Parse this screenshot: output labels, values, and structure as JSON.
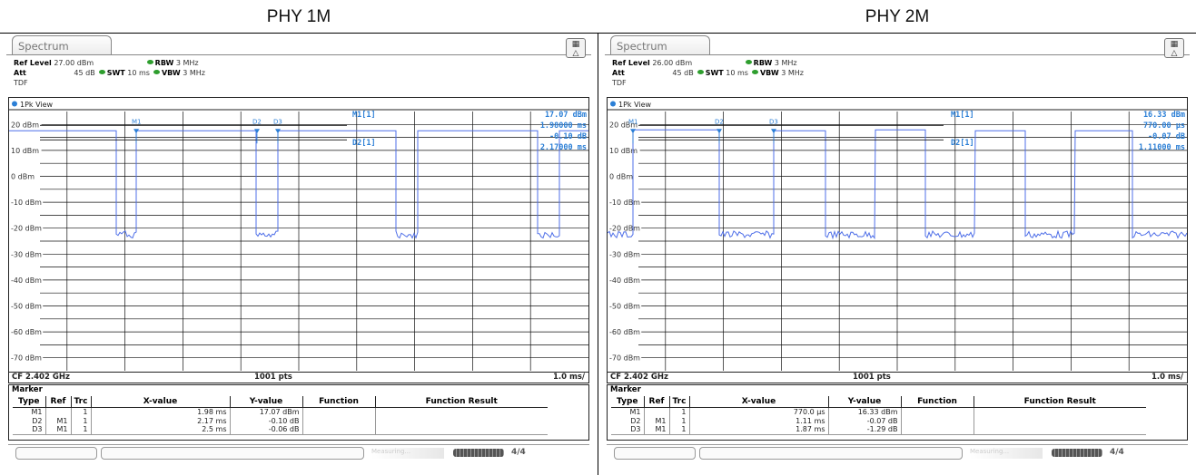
{
  "titles": {
    "left": "PHY 1M",
    "right": "PHY 2M"
  },
  "panels": [
    {
      "tab": "Spectrum",
      "settings": {
        "ref_level_label": "Ref Level",
        "ref_level": "27.00 dBm",
        "att_label": "Att",
        "att": "45 dB",
        "swt_label": "SWT",
        "swt": "10 ms",
        "rbw_label": "RBW",
        "rbw": "3 MHz",
        "vbw_label": "VBW",
        "vbw": "3 MHz",
        "tdf": "TDF"
      },
      "view_label": "1Pk View",
      "y_ticks": [
        "20 dBm",
        "10 dBm",
        "0 dBm",
        "-10 dBm",
        "-20 dBm",
        "-30 dBm",
        "-40 dBm",
        "-50 dBm",
        "-60 dBm",
        "-70 dBm"
      ],
      "marker_readout": {
        "m1_label": "M1[1]",
        "m1_level": "17.07 dBm",
        "m1_time": "1.98000 ms",
        "d2_label": "D2[1]",
        "d2_level": "-0.10 dB",
        "d2_time": "2.17000 ms"
      },
      "marker_flags": [
        "M1",
        "D2",
        "D3"
      ],
      "footer": {
        "cf": "CF 2.402 GHz",
        "pts": "1001 pts",
        "scale": "1.0 ms/"
      },
      "marker_title": "Marker",
      "table_headers": [
        "Type",
        "Ref",
        "Trc",
        "X-value",
        "Y-value",
        "Function",
        "Function Result"
      ],
      "table_rows": [
        [
          "M1",
          "",
          "1",
          "1.98 ms",
          "17.07 dBm",
          "",
          ""
        ],
        [
          "D2",
          "M1",
          "1",
          "2.17 ms",
          "-0.10 dB",
          "",
          ""
        ],
        [
          "D3",
          "M1",
          "1",
          "2.5 ms",
          "-0.06 dB",
          "",
          ""
        ]
      ],
      "status_text": "Measuring...",
      "status_icon": "4/4"
    },
    {
      "tab": "Spectrum",
      "settings": {
        "ref_level_label": "Ref Level",
        "ref_level": "26.00 dBm",
        "att_label": "Att",
        "att": "45 dB",
        "swt_label": "SWT",
        "swt": "10 ms",
        "rbw_label": "RBW",
        "rbw": "3 MHz",
        "vbw_label": "VBW",
        "vbw": "3 MHz",
        "tdf": "TDF"
      },
      "view_label": "1Pk View",
      "y_ticks": [
        "20 dBm",
        "10 dBm",
        "0 dBm",
        "-10 dBm",
        "-20 dBm",
        "-30 dBm",
        "-40 dBm",
        "-50 dBm",
        "-60 dBm",
        "-70 dBm"
      ],
      "marker_readout": {
        "m1_label": "M1[1]",
        "m1_level": "16.33 dBm",
        "m1_time": "770.00 µs",
        "d2_label": "D2[1]",
        "d2_level": "-0.07 dB",
        "d2_time": "1.11000 ms"
      },
      "marker_flags": [
        "M1",
        "D2",
        "D3"
      ],
      "footer": {
        "cf": "CF 2.402 GHz",
        "pts": "1001 pts",
        "scale": "1.0 ms/"
      },
      "marker_title": "Marker",
      "table_headers": [
        "Type",
        "Ref",
        "Trc",
        "X-value",
        "Y-value",
        "Function",
        "Function Result"
      ],
      "table_rows": [
        [
          "M1",
          "",
          "1",
          "770.0 µs",
          "16.33 dBm",
          "",
          ""
        ],
        [
          "D2",
          "M1",
          "1",
          "1.11 ms",
          "-0.07 dB",
          "",
          ""
        ],
        [
          "D3",
          "M1",
          "1",
          "1.87 ms",
          "-1.29 dB",
          "",
          ""
        ]
      ],
      "status_text": "Measuring...",
      "status_icon": "4/4"
    }
  ],
  "colors": {
    "trace": "#4f6fe8",
    "marker": "#2b7fd6",
    "grid": "#111111",
    "led": "#2e9e2e"
  }
}
